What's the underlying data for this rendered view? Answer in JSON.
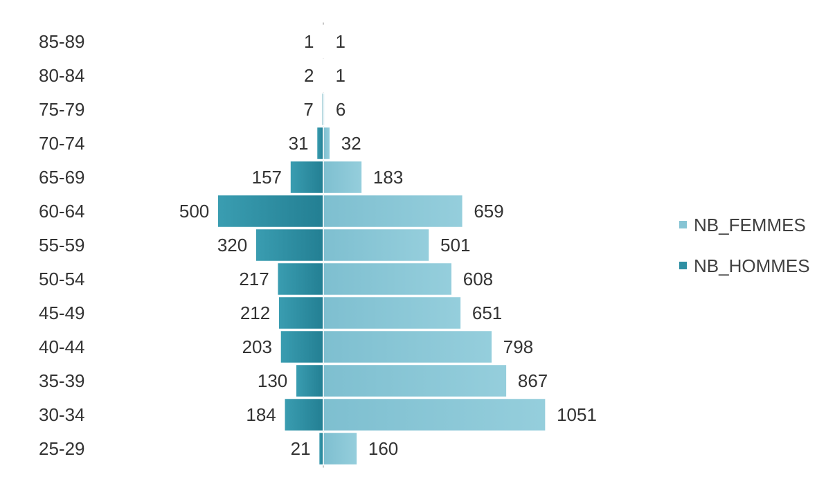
{
  "chart_data": {
    "type": "bar",
    "orientation": "horizontal",
    "layout": "population-pyramid",
    "categories": [
      "85-89",
      "80-84",
      "75-79",
      "70-74",
      "65-69",
      "60-64",
      "55-59",
      "50-54",
      "45-49",
      "40-44",
      "35-39",
      "30-34",
      "25-29"
    ],
    "series": [
      {
        "name": "NB_FEMMES",
        "side": "right",
        "color": "#86c4d4",
        "values": [
          1,
          1,
          6,
          32,
          183,
          659,
          501,
          608,
          651,
          798,
          867,
          1051,
          160
        ]
      },
      {
        "name": "NB_HOMMES",
        "side": "left",
        "color": "#2e8fa3",
        "values": [
          1,
          2,
          7,
          31,
          157,
          500,
          320,
          217,
          212,
          203,
          130,
          184,
          21
        ]
      }
    ],
    "legend": {
      "position": "right",
      "items": [
        {
          "label": "NB_FEMMES",
          "color": "#86c4d4"
        },
        {
          "label": "NB_HOMMES",
          "color": "#2e8fa3"
        }
      ]
    },
    "data_labels": true,
    "grid": false,
    "title": "",
    "xlabel": "",
    "ylabel": ""
  }
}
